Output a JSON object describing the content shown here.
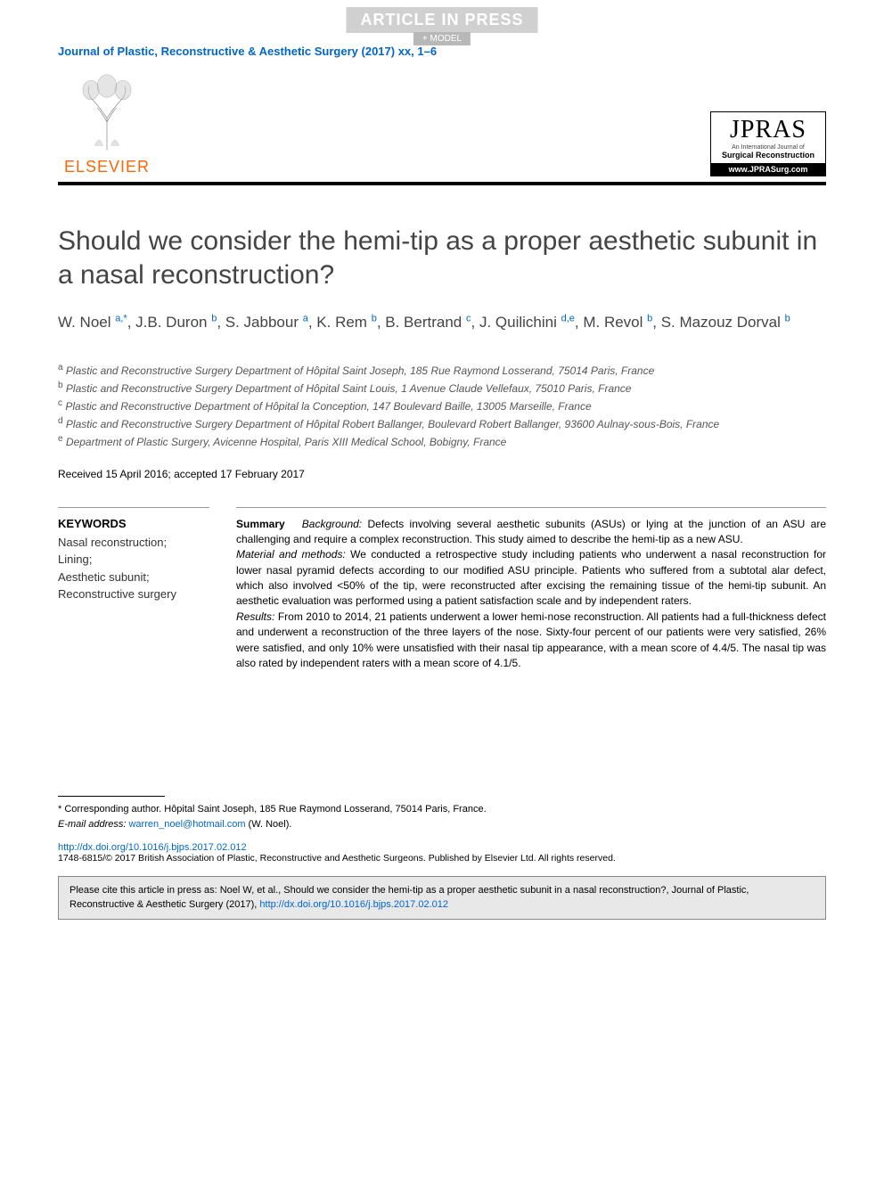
{
  "watermark": "ARTICLE IN PRESS",
  "model_tag": "+ MODEL",
  "journal_reference": "Journal of Plastic, Reconstructive & Aesthetic Surgery (2017) xx, 1–6",
  "publisher": {
    "name": "ELSEVIER",
    "logo_color": "#ff6600"
  },
  "journal_box": {
    "acronym": "JPRAS",
    "sub1": "An International Journal of",
    "sub2": "Surgical Reconstruction",
    "url": "www.JPRASurg.com"
  },
  "title": "Should we consider the hemi-tip as a proper aesthetic subunit in a nasal reconstruction?",
  "authors_html": "W. Noel <sup>a,*</sup>, J.B. Duron <sup>b</sup>, S. Jabbour <sup>a</sup>, K. Rem <sup>b</sup>, B. Bertrand <sup>c</sup>, J. Quilichini <sup>d,e</sup>, M. Revol <sup>b</sup>, S. Mazouz Dorval <sup>b</sup>",
  "affiliations": [
    {
      "sup": "a",
      "text": "Plastic and Reconstructive Surgery Department of Hôpital Saint Joseph, 185 Rue Raymond Losserand, 75014 Paris, France"
    },
    {
      "sup": "b",
      "text": "Plastic and Reconstructive Surgery Department of Hôpital Saint Louis, 1 Avenue Claude Vellefaux, 75010 Paris, France"
    },
    {
      "sup": "c",
      "text": "Plastic and Reconstructive Department of Hôpital la Conception, 147 Boulevard Baille, 13005 Marseille, France"
    },
    {
      "sup": "d",
      "text": "Plastic and Reconstructive Surgery Department of Hôpital Robert Ballanger, Boulevard Robert Ballanger, 93600 Aulnay-sous-Bois, France"
    },
    {
      "sup": "e",
      "text": "Department of Plastic Surgery, Avicenne Hospital, Paris XIII Medical School, Bobigny, France"
    }
  ],
  "dates": "Received 15 April 2016; accepted 17 February 2017",
  "keywords": {
    "heading": "KEYWORDS",
    "items": "Nasal reconstruction;\nLining;\nAesthetic subunit;\nReconstructive surgery"
  },
  "summary": {
    "label": "Summary",
    "background_label": "Background:",
    "background": "Defects involving several aesthetic subunits (ASUs) or lying at the junction of an ASU are challenging and require a complex reconstruction. This study aimed to describe the hemi-tip as a new ASU.",
    "methods_label": "Material and methods:",
    "methods": "We conducted a retrospective study including patients who underwent a nasal reconstruction for lower nasal pyramid defects according to our modified ASU principle. Patients who suffered from a subtotal alar defect, which also involved <50% of the tip, were reconstructed after excising the remaining tissue of the hemi-tip subunit. An aesthetic evaluation was performed using a patient satisfaction scale and by independent raters.",
    "results_label": "Results:",
    "results": "From 2010 to 2014, 21 patients underwent a lower hemi-nose reconstruction. All patients had a full-thickness defect and underwent a reconstruction of the three layers of the nose. Sixty-four percent of our patients were very satisfied, 26% were satisfied, and only 10% were unsatisfied with their nasal tip appearance, with a mean score of 4.4/5. The nasal tip was also rated by independent raters with a mean score of 4.1/5."
  },
  "corresponding": {
    "marker": "*",
    "text": "Corresponding author. Hôpital Saint Joseph, 185 Rue Raymond Losserand, 75014 Paris, France.",
    "email_label": "E-mail address:",
    "email": "warren_noel@hotmail.com",
    "email_suffix": "(W. Noel)."
  },
  "doi": {
    "url": "http://dx.doi.org/10.1016/j.bjps.2017.02.012",
    "issn_line": "1748-6815/© 2017 British Association of Plastic, Reconstructive and Aesthetic Surgeons. Published by Elsevier Ltd. All rights reserved."
  },
  "cite_box": {
    "text": "Please cite this article in press as: Noel W, et al., Should we consider the hemi-tip as a proper aesthetic subunit in a nasal reconstruction?, Journal of Plastic, Reconstructive & Aesthetic Surgery (2017), ",
    "url": "http://dx.doi.org/10.1016/j.bjps.2017.02.012"
  },
  "colors": {
    "link": "#0066cc",
    "elsevier_orange": "#ff6600",
    "watermark_bg": "#d0d0d0",
    "cite_bg": "#e8e8e8"
  }
}
